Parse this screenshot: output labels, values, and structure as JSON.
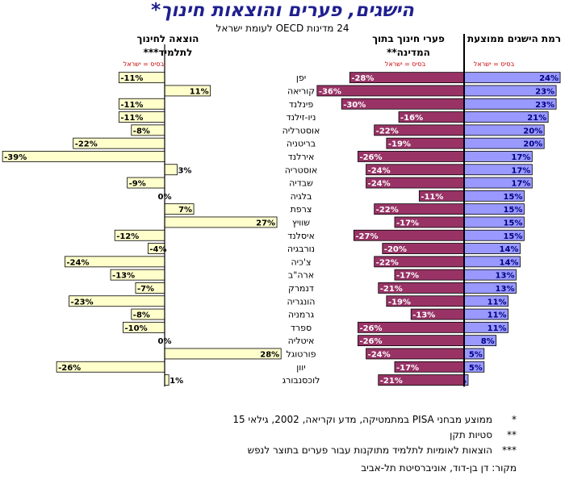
{
  "title": "הישגים, פערים והוצאות חינוך*",
  "subtitle": "24 מדינות OECD לעומת ישראל",
  "headers": {
    "achievement": "רמת הישגים ממוצעת",
    "gaps": "פערי חינוך בתוך המדינה**",
    "spending": "הוצאה לחינוך לתלמיד***"
  },
  "base_label": "בסיס = ישראל",
  "notes": [
    {
      "mark": "*",
      "text": "ממוצע מבחני PISA במתמטיקה, מדע וקריאה, 2002, גילאי 15"
    },
    {
      "mark": "**",
      "text": "סטיות תקן"
    },
    {
      "mark": "***",
      "text": "הוצאות לאומיות לתלמיד מתוקנות עבור פערים בתוצר לנפש"
    }
  ],
  "source": "מקור: דן בן-דוד, אוניברסיטת תל-אביב",
  "colors": {
    "achievement": "#9999ff",
    "gaps": "#993366",
    "spending": "#ffffcc",
    "title": "#1f1f8f",
    "base": "#cc0000"
  },
  "chart_data": {
    "type": "bar",
    "categories": [
      "יפן",
      "קוריאה",
      "פינלנד",
      "ניו-זילנד",
      "אוסטרליה",
      "בריטניה",
      "אירלנד",
      "אוסטריה",
      "שבדיה",
      "בלגיה",
      "צרפת",
      "שוויץ",
      "איסלנד",
      "נורבגיה",
      "צ'כיה",
      "ארה\"ב",
      "דנמרק",
      "הונגריה",
      "גרמניה",
      "ספרד",
      "איטליה",
      "פורטוגל",
      "יוון",
      "לוכסנבורג"
    ],
    "series": [
      {
        "key": "achievement",
        "values": [
          24,
          23,
          23,
          21,
          20,
          20,
          17,
          17,
          17,
          15,
          15,
          15,
          15,
          14,
          14,
          13,
          13,
          11,
          11,
          11,
          8,
          5,
          5,
          1
        ]
      },
      {
        "key": "gaps",
        "values": [
          -28,
          -36,
          -30,
          -16,
          -22,
          -19,
          -26,
          -24,
          -24,
          -11,
          -22,
          -17,
          -27,
          -20,
          -22,
          -17,
          -21,
          -19,
          -13,
          -26,
          -26,
          -24,
          -17,
          -21
        ]
      },
      {
        "key": "spending",
        "values": [
          -11,
          11,
          -11,
          -11,
          -8,
          -22,
          -39,
          3,
          -9,
          0,
          7,
          27,
          -12,
          -4,
          -24,
          -13,
          -7,
          -23,
          -8,
          -10,
          0,
          28,
          -26,
          1
        ]
      }
    ],
    "unit": "%"
  }
}
